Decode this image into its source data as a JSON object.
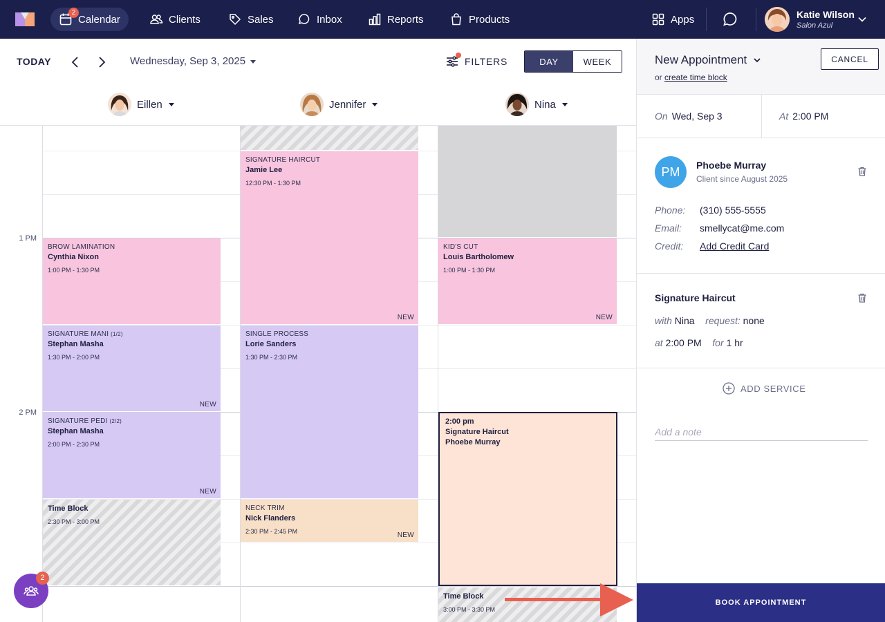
{
  "nav": {
    "items": [
      {
        "label": "Calendar",
        "icon": "calendar-icon",
        "badge": "2",
        "active": true
      },
      {
        "label": "Clients",
        "icon": "clients-icon"
      },
      {
        "label": "Sales",
        "icon": "tag-icon"
      },
      {
        "label": "Inbox",
        "icon": "inbox-icon"
      },
      {
        "label": "Reports",
        "icon": "reports-icon"
      },
      {
        "label": "Products",
        "icon": "bag-icon"
      }
    ],
    "apps_label": "Apps",
    "user": {
      "name": "Katie Wilson",
      "salon": "Salon Azul"
    }
  },
  "toolbar": {
    "today": "TODAY",
    "date": "Wednesday, Sep 3, 2025",
    "filters": "FILTERS",
    "view_day": "DAY",
    "view_week": "WEEK"
  },
  "staff": [
    {
      "name": "Eillen"
    },
    {
      "name": "Jennifer"
    },
    {
      "name": "Nina"
    }
  ],
  "time_labels": [
    "1 PM",
    "2 PM"
  ],
  "appointments": {
    "eillen": [
      {
        "service": "BROW LAMINATION",
        "client": "Cynthia Nixon",
        "time": "1:00 PM - 1:30 PM",
        "tag": ""
      },
      {
        "service": "SIGNATURE MANI",
        "part": "(1/2)",
        "client": "Stephan Masha",
        "time": "1:30 PM - 2:00 PM",
        "tag": "NEW"
      },
      {
        "service": "SIGNATURE PEDI",
        "part": "(2/2)",
        "client": "Stephan Masha",
        "time": "2:00 PM - 2:30 PM",
        "tag": "NEW"
      },
      {
        "client": "Time Block",
        "time": "2:30 PM - 3:00 PM"
      }
    ],
    "jennifer": [
      {
        "service": "SIGNATURE HAIRCUT",
        "client": "Jamie Lee",
        "time": "12:30 PM - 1:30 PM",
        "tag": "NEW"
      },
      {
        "service": "SINGLE PROCESS",
        "client": "Lorie Sanders",
        "time": "1:30 PM - 2:30 PM",
        "tag": ""
      },
      {
        "service": "NECK TRIM",
        "client": "Nick Flanders",
        "time": "2:30 PM - 2:45 PM",
        "tag": "NEW"
      }
    ],
    "nina": [
      {
        "service": "KID'S CUT",
        "client": "Louis Bartholomew",
        "time": "1:00 PM - 1:30 PM",
        "tag": "NEW"
      },
      {
        "client": "Time Block",
        "time": "3:00 PM - 3:30 PM"
      }
    ],
    "selected": {
      "time": "2:00 pm",
      "service": "Signature Haircut",
      "client": "Phoebe Murray"
    }
  },
  "panel": {
    "title": "New Appointment",
    "sub_prefix": "or",
    "sub_link": "create time block",
    "cancel": "CANCEL",
    "on_label": "On",
    "on_value": "Wed, Sep 3",
    "at_label": "At",
    "at_value": "2:00 PM",
    "client": {
      "initials": "PM",
      "name": "Phoebe Murray",
      "since": "Client since August 2025",
      "phone_label": "Phone:",
      "phone": "(310) 555-5555",
      "email_label": "Email:",
      "email": "smellycat@me.com",
      "credit_label": "Credit:",
      "credit": "Add Credit Card"
    },
    "service": {
      "name": "Signature Haircut",
      "with_label": "with",
      "with": "Nina",
      "request_label": "request:",
      "request": "none",
      "at_label": "at",
      "at": "2:00 PM",
      "for_label": "for",
      "for": "1 hr"
    },
    "add_service": "ADD SERVICE",
    "note_placeholder": "Add a note",
    "book": "BOOK APPOINTMENT"
  },
  "fab_badge": "2",
  "colors": {
    "nav_bg": "#1b1f4b",
    "brand_button": "#2b2f85",
    "badge": "#e8604f",
    "arrow": "#e8604f",
    "pink": "#f8c4de",
    "purple": "#d6c9f4",
    "peach": "#f8dfc7",
    "selected": "#fde4d6"
  }
}
